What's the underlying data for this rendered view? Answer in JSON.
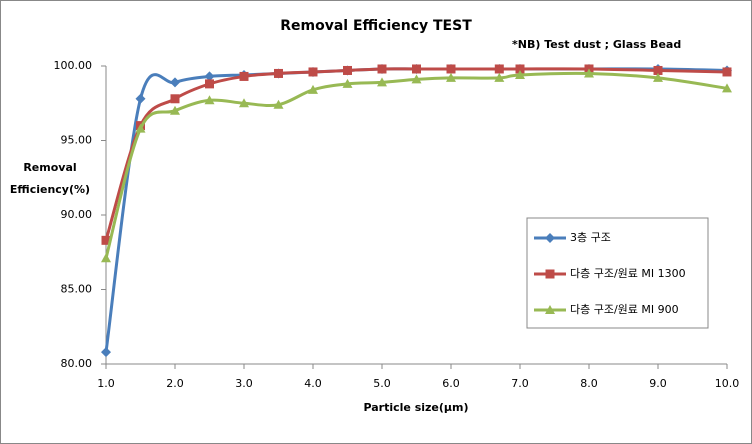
{
  "chart_data": {
    "type": "line",
    "title": "Removal Efficiency TEST",
    "annotation": "*NB)   Test dust ;  Glass Bead",
    "x_label": "Particle size(μm)",
    "y_label": [
      "Removal",
      "Efficiency(%)"
    ],
    "x": [
      1.0,
      1.5,
      2.0,
      2.5,
      3.0,
      3.5,
      4.0,
      4.5,
      5.0,
      5.5,
      6.0,
      6.7,
      7.0,
      8.0,
      9.0,
      10.0
    ],
    "series": [
      {
        "name": "3층 구조",
        "color": "#4a7ebb",
        "marker": "diamond",
        "values": [
          80.8,
          97.8,
          98.9,
          99.3,
          99.4,
          99.5,
          99.6,
          99.7,
          99.8,
          99.8,
          99.8,
          99.8,
          99.8,
          99.8,
          99.8,
          99.7
        ]
      },
      {
        "name": "다층 구조/원료 MI 1300",
        "color": "#be4b48",
        "marker": "square",
        "values": [
          88.3,
          96.0,
          97.8,
          98.8,
          99.3,
          99.5,
          99.6,
          99.7,
          99.8,
          99.8,
          99.8,
          99.8,
          99.8,
          99.8,
          99.7,
          99.6
        ]
      },
      {
        "name": "다층 구조/원료 MI 900",
        "color": "#98b954",
        "marker": "triangle",
        "values": [
          87.1,
          95.8,
          97.0,
          97.7,
          97.5,
          97.4,
          98.4,
          98.8,
          98.9,
          99.1,
          99.2,
          99.2,
          99.4,
          99.5,
          99.2,
          98.5
        ]
      }
    ],
    "xlim": [
      1.0,
      10.0
    ],
    "xticks": [
      {
        "value": 1,
        "label": "1.0"
      },
      {
        "value": 2,
        "label": "2.0"
      },
      {
        "value": 3,
        "label": "3.0"
      },
      {
        "value": 4,
        "label": "4.0"
      },
      {
        "value": 5,
        "label": "5.0"
      },
      {
        "value": 6,
        "label": "6.0"
      },
      {
        "value": 7,
        "label": "7.0"
      },
      {
        "value": 8,
        "label": "8.0"
      },
      {
        "value": 9,
        "label": "9.0"
      },
      {
        "value": 10,
        "label": "10.0"
      }
    ],
    "ylim": [
      80,
      100
    ],
    "yticks": [
      {
        "value": 80,
        "label": "80.00"
      },
      {
        "value": 85,
        "label": "85.00"
      },
      {
        "value": 90,
        "label": "90.00"
      },
      {
        "value": 95,
        "label": "95.00"
      },
      {
        "value": 100,
        "label": "100.00"
      }
    ],
    "legend_position": "right"
  }
}
